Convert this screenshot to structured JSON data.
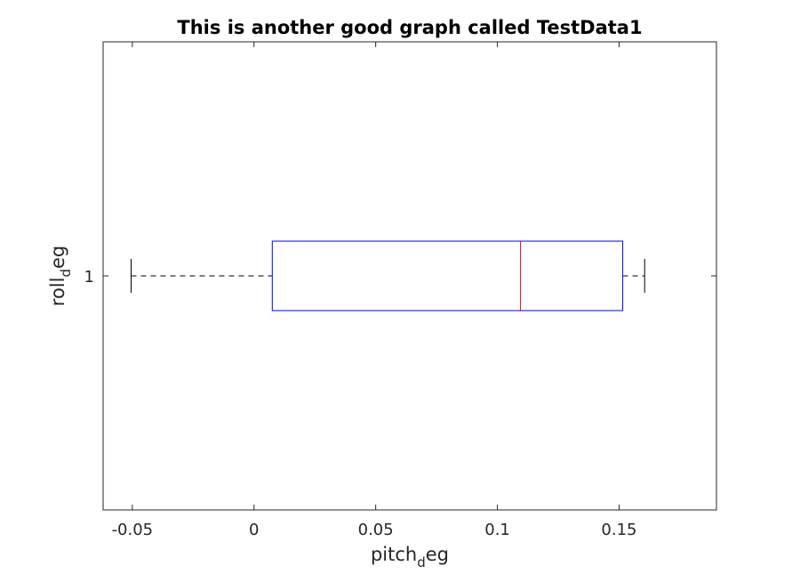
{
  "chart_data": {
    "type": "boxplot",
    "orientation": "horizontal",
    "title": "This is another good graph called TestData1",
    "xlabel": {
      "main": "pitch",
      "subscript": "d",
      "rest": "eg"
    },
    "ylabel": {
      "main": "roll",
      "subscript": "d",
      "rest": "eg"
    },
    "xlim": [
      -0.062,
      0.19
    ],
    "ylim": [
      0.5,
      1.5
    ],
    "x_ticks": [
      -0.05,
      0,
      0.05,
      0.1,
      0.15
    ],
    "x_tick_labels": [
      "-0.05",
      "0",
      "0.05",
      "0.1",
      "0.15"
    ],
    "y_ticks": [
      1
    ],
    "y_tick_labels": [
      "1"
    ],
    "grid": false,
    "boxes": [
      {
        "category": "1",
        "whisker_low": -0.0505,
        "q1": 0.0075,
        "median": 0.1095,
        "q3": 0.1515,
        "whisker_high": 0.1605
      }
    ],
    "colors": {
      "box": "#0000ff",
      "median": "#ff0000",
      "whisker": "#000000",
      "axis": "#262626"
    }
  }
}
